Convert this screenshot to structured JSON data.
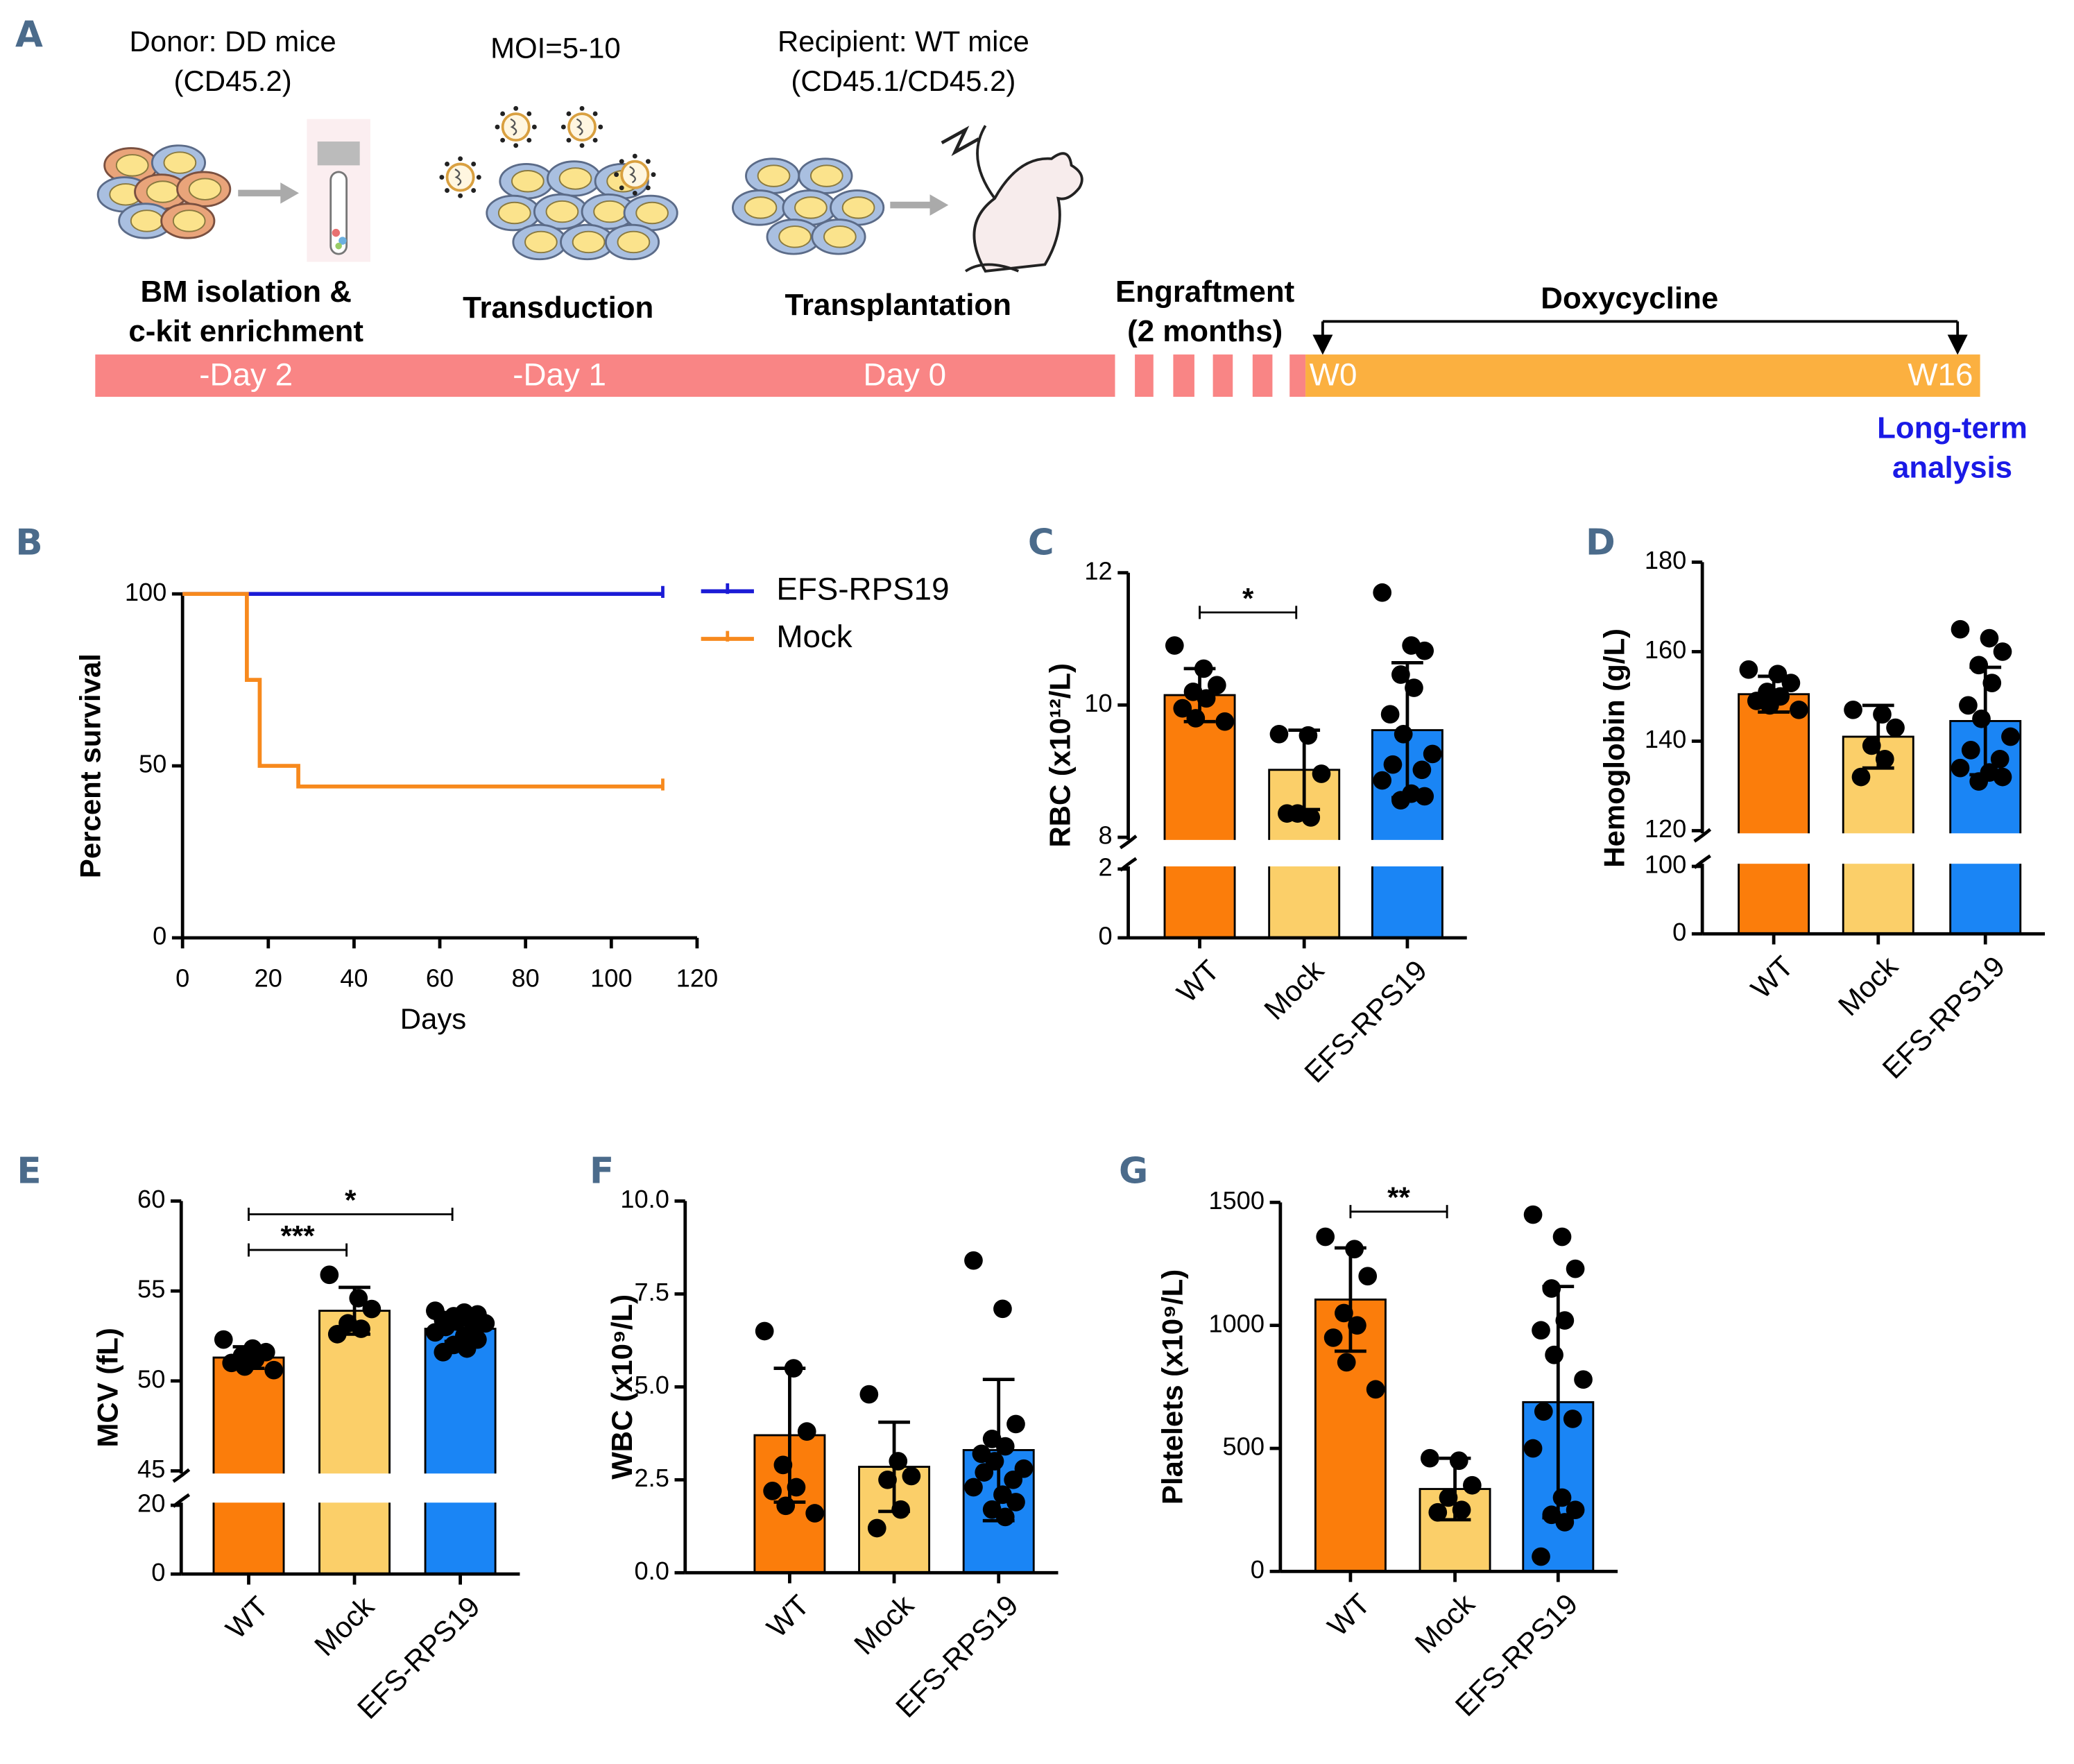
{
  "panel_a": {
    "label": "A",
    "donor": [
      "Donor: DD mice",
      "(CD45.2)"
    ],
    "moi": "MOI=5-10",
    "recipient": [
      "Recipient: WT mice",
      "(CD45.1/CD45.2)"
    ],
    "steps": [
      [
        "BM isolation &",
        "c-kit enrichment"
      ],
      [
        "Transduction"
      ],
      [
        "Transplantation"
      ],
      [
        "Engraftment",
        "(2 months)"
      ]
    ],
    "doxycycline": "Doxycycline",
    "timeline": [
      "-Day 2",
      "-Day 1",
      "Day 0"
    ],
    "weeks": [
      "W0",
      "W16"
    ],
    "analysis": [
      "Long-term",
      "analysis"
    ]
  },
  "chart_data": [
    {
      "label": "B",
      "type": "line",
      "xlabel": "Days",
      "ylabel": "Percent survival",
      "xlim": [
        0,
        120
      ],
      "xticks": [
        0,
        20,
        40,
        60,
        80,
        100,
        120
      ],
      "ylim": [
        0,
        100
      ],
      "yticks": [
        0,
        50,
        100
      ],
      "legend": "upper right",
      "series": [
        {
          "name": "EFS-RPS19",
          "color": "#1b1bd6",
          "x": [
            0,
            112
          ],
          "values": [
            100,
            100
          ]
        },
        {
          "name": "Mock",
          "color": "#f7891d",
          "x": [
            0,
            15,
            15,
            18,
            18,
            27,
            27,
            112
          ],
          "values": [
            100,
            100,
            75,
            75,
            50,
            50,
            44,
            44
          ]
        }
      ]
    },
    {
      "label": "C",
      "type": "bar",
      "ylabel": "RBC (x10¹²/L)",
      "categories": [
        "WT",
        "Mock",
        "EFS-RPS19"
      ],
      "colors": [
        "#fb7d0b",
        "#fbcf69",
        "#1a85f5"
      ],
      "values": [
        10.15,
        9.02,
        9.62
      ],
      "errors": [
        0.4,
        0.6,
        1.02
      ],
      "points": [
        [
          10.9,
          10.55,
          10.3,
          10.2,
          10.1,
          9.95,
          9.8,
          9.75
        ],
        [
          9.56,
          9.54,
          8.96,
          8.36,
          8.3,
          8.36
        ],
        [
          11.7,
          10.9,
          10.82,
          10.46,
          10.26,
          9.86,
          9.56,
          9.26,
          9.1,
          9.02,
          8.86,
          8.66,
          8.62,
          8.56
        ]
      ],
      "ylim": [
        0,
        12
      ],
      "ybreak": [
        2,
        8
      ],
      "yticks": [
        0,
        2,
        8,
        10,
        12
      ],
      "significance": [
        {
          "from": 0,
          "to": 1,
          "label": "*"
        }
      ]
    },
    {
      "label": "D",
      "type": "bar",
      "ylabel": "Hemoglobin (g/L)",
      "categories": [
        "WT",
        "Mock",
        "EFS-RPS19"
      ],
      "colors": [
        "#fb7d0b",
        "#fbcf69",
        "#1a85f5"
      ],
      "values": [
        150.5,
        141,
        144.5
      ],
      "errors": [
        4,
        7,
        12
      ],
      "points": [
        [
          156,
          155,
          153,
          151,
          150,
          149,
          148,
          147
        ],
        [
          147,
          146,
          143,
          139,
          136,
          132
        ],
        [
          165,
          163,
          160,
          157,
          153,
          148,
          145,
          141,
          138,
          136,
          134,
          133,
          132,
          131
        ]
      ],
      "ylim": [
        0,
        180
      ],
      "ybreak": [
        100,
        120
      ],
      "yticks": [
        0,
        100,
        120,
        140,
        160,
        180
      ],
      "significance": []
    },
    {
      "label": "E",
      "type": "bar",
      "ylabel": "MCV (fL)",
      "categories": [
        "WT",
        "Mock",
        "EFS-RPS19"
      ],
      "colors": [
        "#fb7d0b",
        "#fbcf69",
        "#1a85f5"
      ],
      "values": [
        51.3,
        53.9,
        52.9
      ],
      "errors": [
        0.6,
        1.3,
        0.7
      ],
      "points": [
        [
          52.3,
          51.8,
          51.6,
          51.4,
          51.2,
          51.0,
          50.8,
          50.6
        ],
        [
          55.9,
          54.6,
          54.0,
          53.2,
          52.9,
          52.6
        ],
        [
          53.9,
          53.8,
          53.7,
          53.6,
          53.5,
          53.4,
          53.3,
          53.2,
          53.0,
          52.9,
          52.7,
          52.5,
          52.3,
          52.0,
          51.8,
          51.6
        ]
      ],
      "ylim": [
        0,
        60
      ],
      "ybreak": [
        20,
        45
      ],
      "yticks": [
        0,
        20,
        45,
        50,
        55,
        60
      ],
      "significance": [
        {
          "from": 0,
          "to": 1,
          "label": "***"
        },
        {
          "from": 0,
          "to": 2,
          "label": "*"
        }
      ]
    },
    {
      "label": "F",
      "type": "bar",
      "ylabel": "WBC (x10⁹/L)",
      "categories": [
        "WT",
        "Mock",
        "EFS-RPS19"
      ],
      "colors": [
        "#fb7d0b",
        "#fbcf69",
        "#1a85f5"
      ],
      "values": [
        3.7,
        2.85,
        3.3
      ],
      "errors": [
        1.8,
        1.2,
        1.9
      ],
      "points": [
        [
          6.5,
          5.5,
          3.8,
          2.9,
          2.3,
          2.2,
          1.8,
          1.6
        ],
        [
          4.8,
          3.0,
          2.6,
          2.5,
          1.7,
          1.2
        ],
        [
          8.4,
          7.1,
          4.0,
          3.6,
          3.4,
          3.2,
          3.0,
          2.8,
          2.7,
          2.5,
          2.3,
          2.1,
          1.9,
          1.7,
          1.5
        ]
      ],
      "ylim": [
        0,
        10
      ],
      "yticks": [
        {
          "value": 0,
          "label": "0.0"
        },
        2.5,
        {
          "value": 5,
          "label": "5.0"
        },
        7.5,
        {
          "value": 10,
          "label": "10.0"
        }
      ],
      "significance": []
    },
    {
      "label": "G",
      "type": "bar",
      "ylabel": "Platelets (x10⁹/L)",
      "categories": [
        "WT",
        "Mock",
        "EFS-RPS19"
      ],
      "colors": [
        "#fb7d0b",
        "#fbcf69",
        "#1a85f5"
      ],
      "values": [
        1105,
        335,
        688
      ],
      "errors": [
        210,
        125,
        470
      ],
      "points": [
        [
          1360,
          1310,
          1200,
          1050,
          1000,
          950,
          850,
          740
        ],
        [
          460,
          450,
          350,
          300,
          250,
          240
        ],
        [
          1450,
          1360,
          1230,
          1150,
          1020,
          980,
          880,
          780,
          650,
          620,
          500,
          300,
          250,
          230,
          200,
          60
        ]
      ],
      "ylim": [
        0,
        1500
      ],
      "yticks": [
        0,
        500,
        1000,
        1500
      ],
      "significance": [
        {
          "from": 0,
          "to": 1,
          "label": "**"
        }
      ]
    }
  ]
}
